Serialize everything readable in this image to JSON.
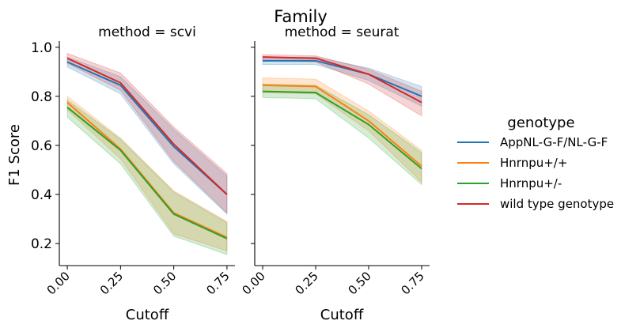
{
  "figure": {
    "suptitle": "Family"
  },
  "colors": {
    "AppNL-G-F/NL-G-F": "#1f77b4",
    "Hnrnpu+/+": "#ff7f0e",
    "Hnrnpu+/-": "#2ca02c",
    "wild type genotype": "#d62728"
  },
  "legend": {
    "title": "genotype",
    "placement": "right"
  },
  "chart_data": [
    {
      "type": "line",
      "title": "method = scvi",
      "xlabel": "Cutoff",
      "ylabel": "F1 Score",
      "x": [
        0.0,
        0.25,
        0.5,
        0.75
      ],
      "xticks": [
        "0.00",
        "0.25",
        "0.50",
        "0.75"
      ],
      "yticks": [
        "0.2",
        "0.4",
        "0.6",
        "0.8",
        "1.0"
      ],
      "xlim": [
        -0.0375,
        0.7875
      ],
      "ylim": [
        0.11,
        1.025
      ],
      "series": [
        {
          "name": "AppNL-G-F/NL-G-F",
          "values": [
            0.94,
            0.845,
            0.595,
            0.4
          ],
          "ci_low": [
            0.92,
            0.81,
            0.525,
            0.32
          ],
          "ci_high": [
            0.96,
            0.88,
            0.665,
            0.475
          ]
        },
        {
          "name": "Hnrnpu+/+",
          "values": [
            0.775,
            0.585,
            0.325,
            0.225
          ],
          "ci_low": [
            0.745,
            0.545,
            0.24,
            0.17
          ],
          "ci_high": [
            0.8,
            0.63,
            0.415,
            0.29
          ]
        },
        {
          "name": "Hnrnpu+/-",
          "values": [
            0.755,
            0.58,
            0.32,
            0.22
          ],
          "ci_low": [
            0.715,
            0.525,
            0.23,
            0.155
          ],
          "ci_high": [
            0.785,
            0.625,
            0.41,
            0.285
          ]
        },
        {
          "name": "wild type genotype",
          "values": [
            0.955,
            0.855,
            0.605,
            0.4
          ],
          "ci_low": [
            0.935,
            0.825,
            0.535,
            0.325
          ],
          "ci_high": [
            0.975,
            0.895,
            0.675,
            0.485
          ]
        }
      ]
    },
    {
      "type": "line",
      "title": "method = seurat",
      "xlabel": "Cutoff",
      "ylabel": "",
      "x": [
        0.0,
        0.25,
        0.5,
        0.75
      ],
      "xticks": [
        "0.00",
        "0.25",
        "0.50",
        "0.75"
      ],
      "yticks": [
        "0.2",
        "0.4",
        "0.6",
        "0.8",
        "1.0"
      ],
      "xlim": [
        -0.0375,
        0.7875
      ],
      "ylim": [
        0.11,
        1.025
      ],
      "series": [
        {
          "name": "AppNL-G-F/NL-G-F",
          "values": [
            0.945,
            0.945,
            0.89,
            0.8
          ],
          "ci_low": [
            0.93,
            0.93,
            0.865,
            0.76
          ],
          "ci_high": [
            0.96,
            0.96,
            0.915,
            0.84
          ]
        },
        {
          "name": "Hnrnpu+/+",
          "values": [
            0.845,
            0.84,
            0.7,
            0.515
          ],
          "ci_low": [
            0.815,
            0.81,
            0.66,
            0.45
          ],
          "ci_high": [
            0.875,
            0.87,
            0.74,
            0.58
          ]
        },
        {
          "name": "Hnrnpu+/-",
          "values": [
            0.82,
            0.815,
            0.685,
            0.505
          ],
          "ci_low": [
            0.795,
            0.79,
            0.63,
            0.44
          ],
          "ci_high": [
            0.85,
            0.845,
            0.725,
            0.57
          ]
        },
        {
          "name": "wild type genotype",
          "values": [
            0.96,
            0.955,
            0.89,
            0.775
          ],
          "ci_low": [
            0.945,
            0.94,
            0.85,
            0.72
          ],
          "ci_high": [
            0.97,
            0.965,
            0.91,
            0.82
          ]
        }
      ]
    }
  ]
}
